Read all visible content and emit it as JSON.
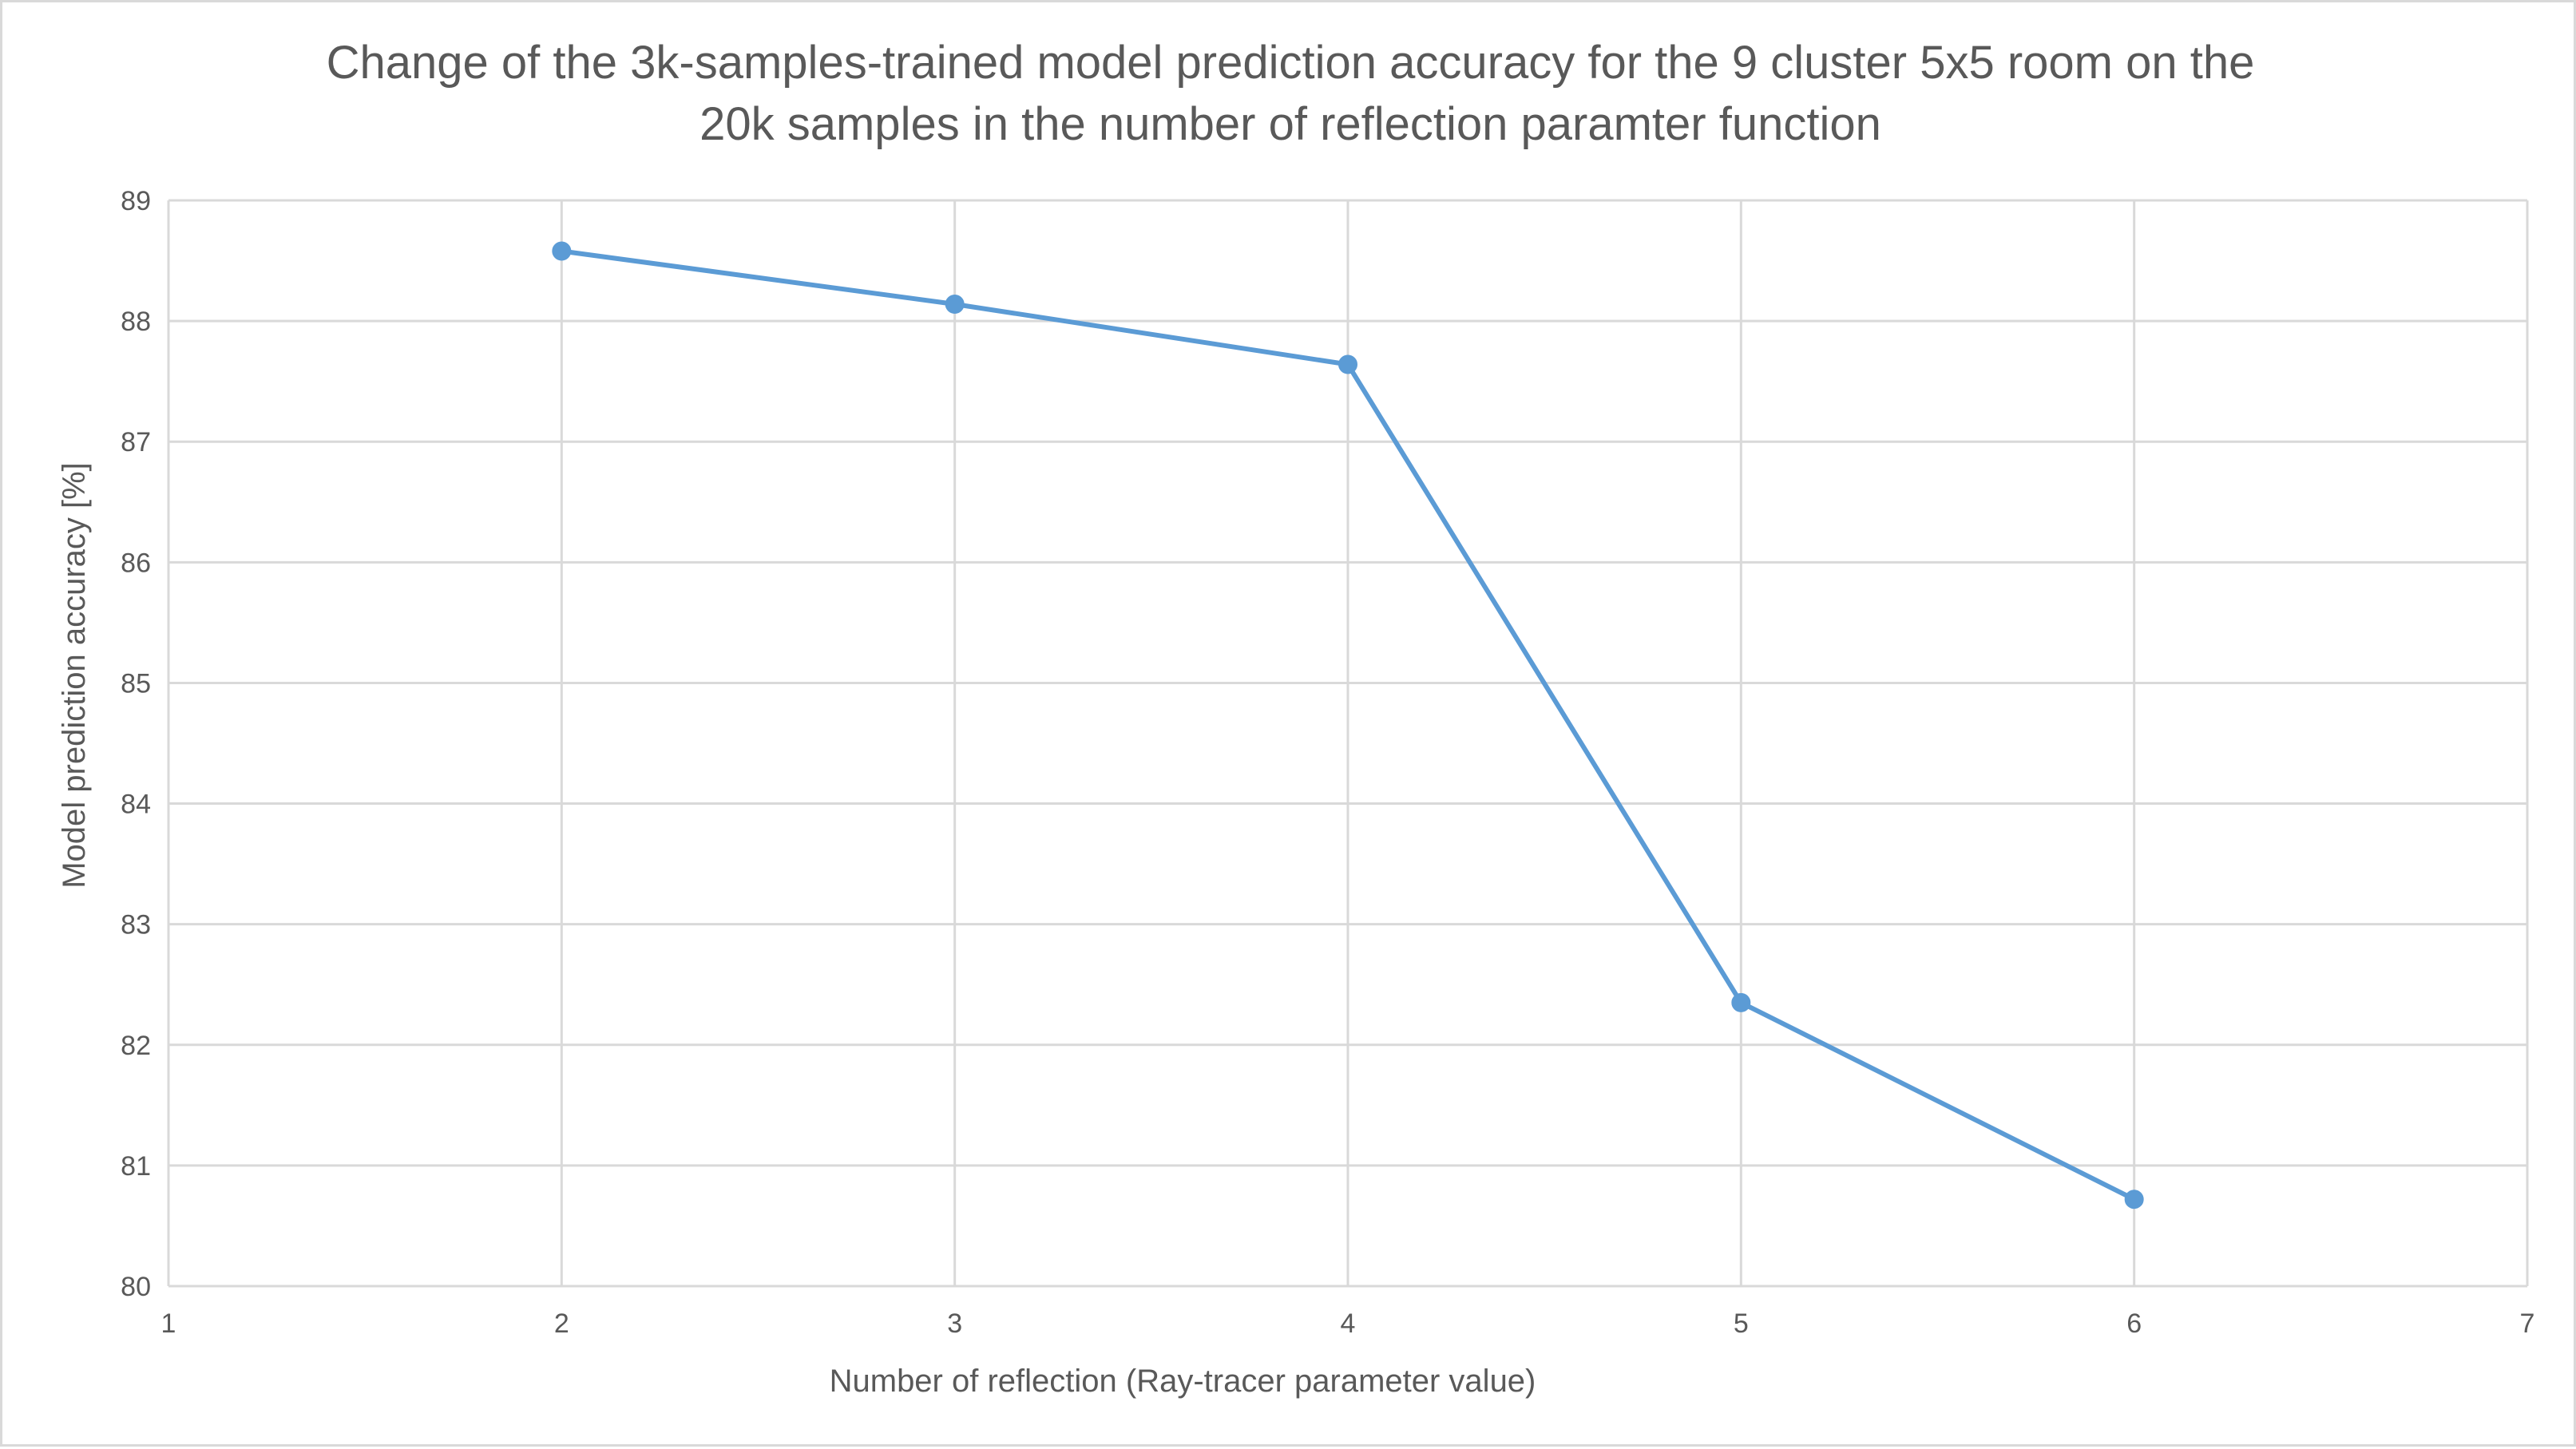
{
  "chart_data": {
    "type": "scatter",
    "title_lines": [
      "Change of the 3k-samples-trained model prediction accuracy for the 9 cluster 5x5 room on the",
      "20k samples in the number of reflection paramter function"
    ],
    "xlabel": "Number of reflection (Ray-tracer parameter value)",
    "ylabel": "Model prediction accuracy [%]",
    "xlim": [
      1,
      7
    ],
    "ylim": [
      80,
      89
    ],
    "x_ticks": [
      1,
      2,
      3,
      4,
      5,
      6,
      7
    ],
    "y_ticks": [
      80,
      81,
      82,
      83,
      84,
      85,
      86,
      87,
      88,
      89
    ],
    "grid": true,
    "legend": "none",
    "series": [
      {
        "color": "#5b9bd5",
        "markers": true,
        "lines": true,
        "x": [
          2,
          3,
          4,
          5,
          6
        ],
        "y": [
          88.58,
          88.14,
          87.64,
          82.35,
          80.72
        ]
      }
    ]
  }
}
